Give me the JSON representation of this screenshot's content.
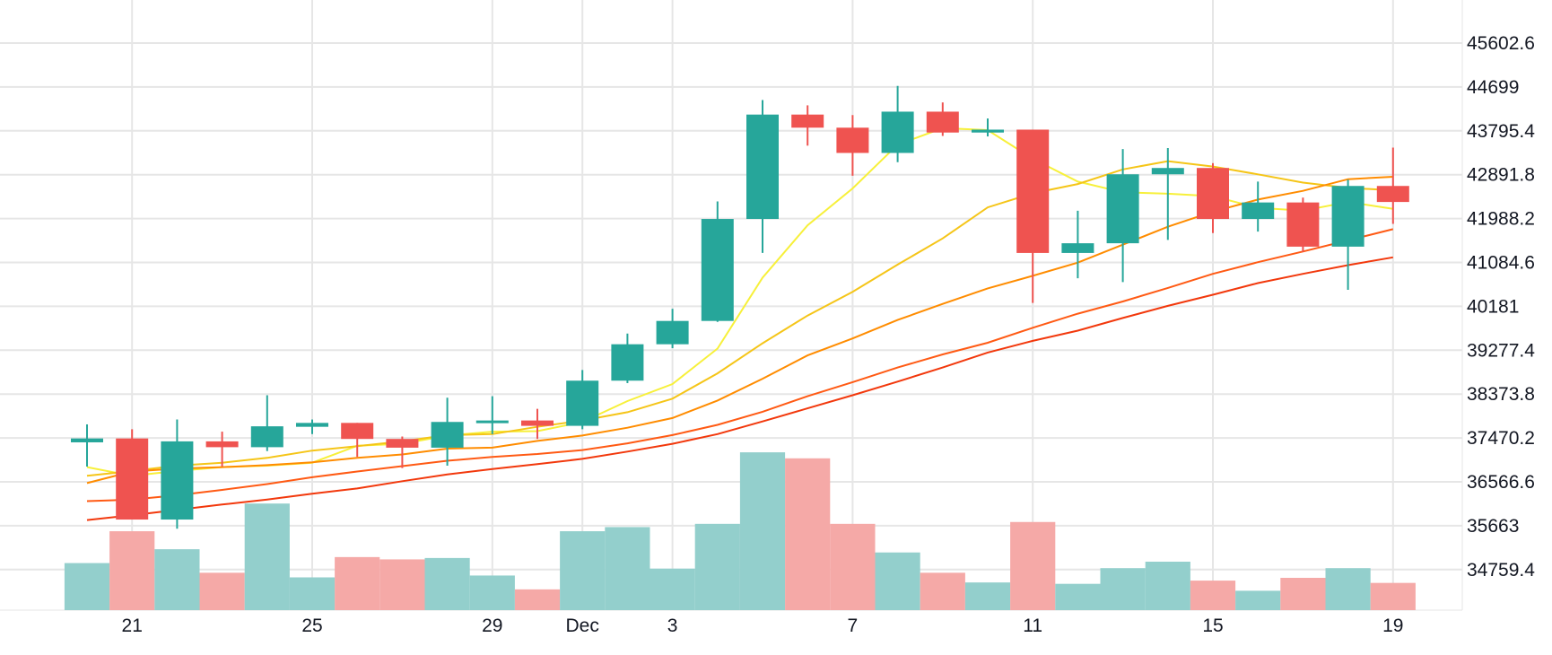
{
  "chart_data": {
    "type": "candlestick",
    "y_ticks": [
      "45602.6",
      "44699",
      "43795.4",
      "42891.8",
      "41988.2",
      "41084.6",
      "40181",
      "39277.4",
      "38373.8",
      "37470.2",
      "36566.6",
      "35663",
      "34759.4"
    ],
    "x_ticks": [
      {
        "label": "21",
        "index": 1
      },
      {
        "label": "25",
        "index": 5
      },
      {
        "label": "29",
        "index": 9
      },
      {
        "label": "Dec",
        "index": 11
      },
      {
        "label": "3",
        "index": 13
      },
      {
        "label": "7",
        "index": 17
      },
      {
        "label": "11",
        "index": 21
      },
      {
        "label": "15",
        "index": 25
      },
      {
        "label": "19",
        "index": 29
      }
    ],
    "ylim": [
      34300,
      45900
    ],
    "grid": true,
    "volume_max": 35,
    "candles": [
      {
        "date": "20",
        "open": 37380,
        "high": 37750,
        "low": 36880,
        "close": 37460,
        "volume": 10.2
      },
      {
        "date": "21",
        "open": 37460,
        "high": 37650,
        "low": 35790,
        "close": 35790,
        "volume": 17.1
      },
      {
        "date": "22",
        "open": 35790,
        "high": 37850,
        "low": 35600,
        "close": 37400,
        "volume": 13.2
      },
      {
        "date": "23",
        "open": 37400,
        "high": 37600,
        "low": 36880,
        "close": 37280,
        "volume": 8.1
      },
      {
        "date": "24",
        "open": 37280,
        "high": 38350,
        "low": 37200,
        "close": 37710,
        "volume": 23.1
      },
      {
        "date": "25",
        "open": 37700,
        "high": 37850,
        "low": 37550,
        "close": 37780,
        "volume": 7.1
      },
      {
        "date": "26",
        "open": 37780,
        "high": 37780,
        "low": 37080,
        "close": 37450,
        "volume": 11.5
      },
      {
        "date": "27",
        "open": 37450,
        "high": 37500,
        "low": 36850,
        "close": 37270,
        "volume": 11.0
      },
      {
        "date": "28",
        "open": 37270,
        "high": 38300,
        "low": 36900,
        "close": 37800,
        "volume": 11.3
      },
      {
        "date": "29",
        "open": 37800,
        "high": 38330,
        "low": 37550,
        "close": 37830,
        "volume": 7.5
      },
      {
        "date": "30",
        "open": 37830,
        "high": 38070,
        "low": 37450,
        "close": 37720,
        "volume": 4.5
      },
      {
        "date": "Dec",
        "open": 37720,
        "high": 38870,
        "low": 37650,
        "close": 38650,
        "volume": 17.1
      },
      {
        "date": "2",
        "open": 38650,
        "high": 39620,
        "low": 38600,
        "close": 39400,
        "volume": 18.0
      },
      {
        "date": "3",
        "open": 39400,
        "high": 40130,
        "low": 39320,
        "close": 39880,
        "volume": 9.0
      },
      {
        "date": "4",
        "open": 39880,
        "high": 42340,
        "low": 39860,
        "close": 41980,
        "volume": 18.7
      },
      {
        "date": "5",
        "open": 41980,
        "high": 44430,
        "low": 41280,
        "close": 44130,
        "volume": 34.2
      },
      {
        "date": "6",
        "open": 44130,
        "high": 44320,
        "low": 43490,
        "close": 43860,
        "volume": 32.9
      },
      {
        "date": "7",
        "open": 43860,
        "high": 44120,
        "low": 42870,
        "close": 43340,
        "volume": 18.7
      },
      {
        "date": "8",
        "open": 43340,
        "high": 44720,
        "low": 43150,
        "close": 44190,
        "volume": 12.5
      },
      {
        "date": "9",
        "open": 44190,
        "high": 44380,
        "low": 43690,
        "close": 43760,
        "volume": 8.1
      },
      {
        "date": "10",
        "open": 43760,
        "high": 44050,
        "low": 43680,
        "close": 43820,
        "volume": 6.0
      },
      {
        "date": "11",
        "open": 43820,
        "high": 43820,
        "low": 40250,
        "close": 41280,
        "volume": 19.1
      },
      {
        "date": "12",
        "open": 41280,
        "high": 42150,
        "low": 40760,
        "close": 41480,
        "volume": 5.7
      },
      {
        "date": "13",
        "open": 41480,
        "high": 43420,
        "low": 40680,
        "close": 42900,
        "volume": 9.1
      },
      {
        "date": "14",
        "open": 42900,
        "high": 43440,
        "low": 41550,
        "close": 43030,
        "volume": 10.5
      },
      {
        "date": "15",
        "open": 43030,
        "high": 43130,
        "low": 41690,
        "close": 41980,
        "volume": 6.4
      },
      {
        "date": "16",
        "open": 41980,
        "high": 42750,
        "low": 41720,
        "close": 42320,
        "volume": 4.2
      },
      {
        "date": "17",
        "open": 42320,
        "high": 42420,
        "low": 41300,
        "close": 41410,
        "volume": 7.0
      },
      {
        "date": "18",
        "open": 41410,
        "high": 42790,
        "low": 40520,
        "close": 42660,
        "volume": 9.1
      },
      {
        "date": "19",
        "open": 42660,
        "high": 43450,
        "low": 41880,
        "close": 42330,
        "volume": 5.9
      }
    ],
    "moving_averages": [
      {
        "color": "#f7f03a",
        "values": [
          36870,
          36690,
          36790,
          36870,
          36900,
          36960,
          37310,
          37350,
          37520,
          37600,
          37610,
          37800,
          38230,
          38580,
          39310,
          40770,
          41850,
          42610,
          43510,
          43850,
          43810,
          43220,
          42750,
          42530,
          42500,
          42450,
          42210,
          42150,
          42330,
          42190
        ]
      },
      {
        "color": "#f5c518",
        "values": null,
        "start": 2,
        "vals": [
          36690,
          36790,
          36900,
          36960,
          37060,
          37210,
          37300,
          37400,
          37530,
          37550,
          37700,
          37830,
          38000,
          38280,
          38800,
          39420,
          39990,
          40480,
          41040,
          41580,
          42220,
          42510,
          42700,
          43000,
          43170,
          43060,
          42900,
          42730,
          42620,
          42570
        ]
      },
      {
        "color": "#ff8c00",
        "values": null,
        "start": 3,
        "vals": [
          36540,
          36780,
          36840,
          36870,
          36910,
          36970,
          37060,
          37130,
          37250,
          37270,
          37410,
          37520,
          37680,
          37880,
          38240,
          38690,
          39170,
          39520,
          39900,
          40230,
          40550,
          40810,
          41080,
          41450,
          41820,
          42130,
          42380,
          42560,
          42800,
          42850
        ]
      },
      {
        "color": "#ff5a14",
        "values": null,
        "start": 4,
        "vals": [
          36170,
          36200,
          36290,
          36400,
          36520,
          36660,
          36780,
          36890,
          37000,
          37080,
          37140,
          37220,
          37360,
          37530,
          37740,
          38010,
          38330,
          38620,
          38920,
          39190,
          39430,
          39740,
          40030,
          40280,
          40560,
          40850,
          41090,
          41310,
          41540,
          41770
        ]
      },
      {
        "color": "#f2380c",
        "values": null,
        "start": 5,
        "vals": [
          35780,
          35880,
          35990,
          36100,
          36200,
          36320,
          36430,
          36580,
          36720,
          36830,
          36930,
          37040,
          37190,
          37350,
          37550,
          37810,
          38080,
          38350,
          38630,
          38920,
          39230,
          39470,
          39680,
          39940,
          40190,
          40420,
          40660,
          40850,
          41030,
          41190
        ]
      }
    ],
    "colors": {
      "up": "#26a69a",
      "down": "#ef5350",
      "up_volume": "#93cfcc",
      "down_volume": "#f5a9a7",
      "grid": "#e6e6e6"
    }
  }
}
